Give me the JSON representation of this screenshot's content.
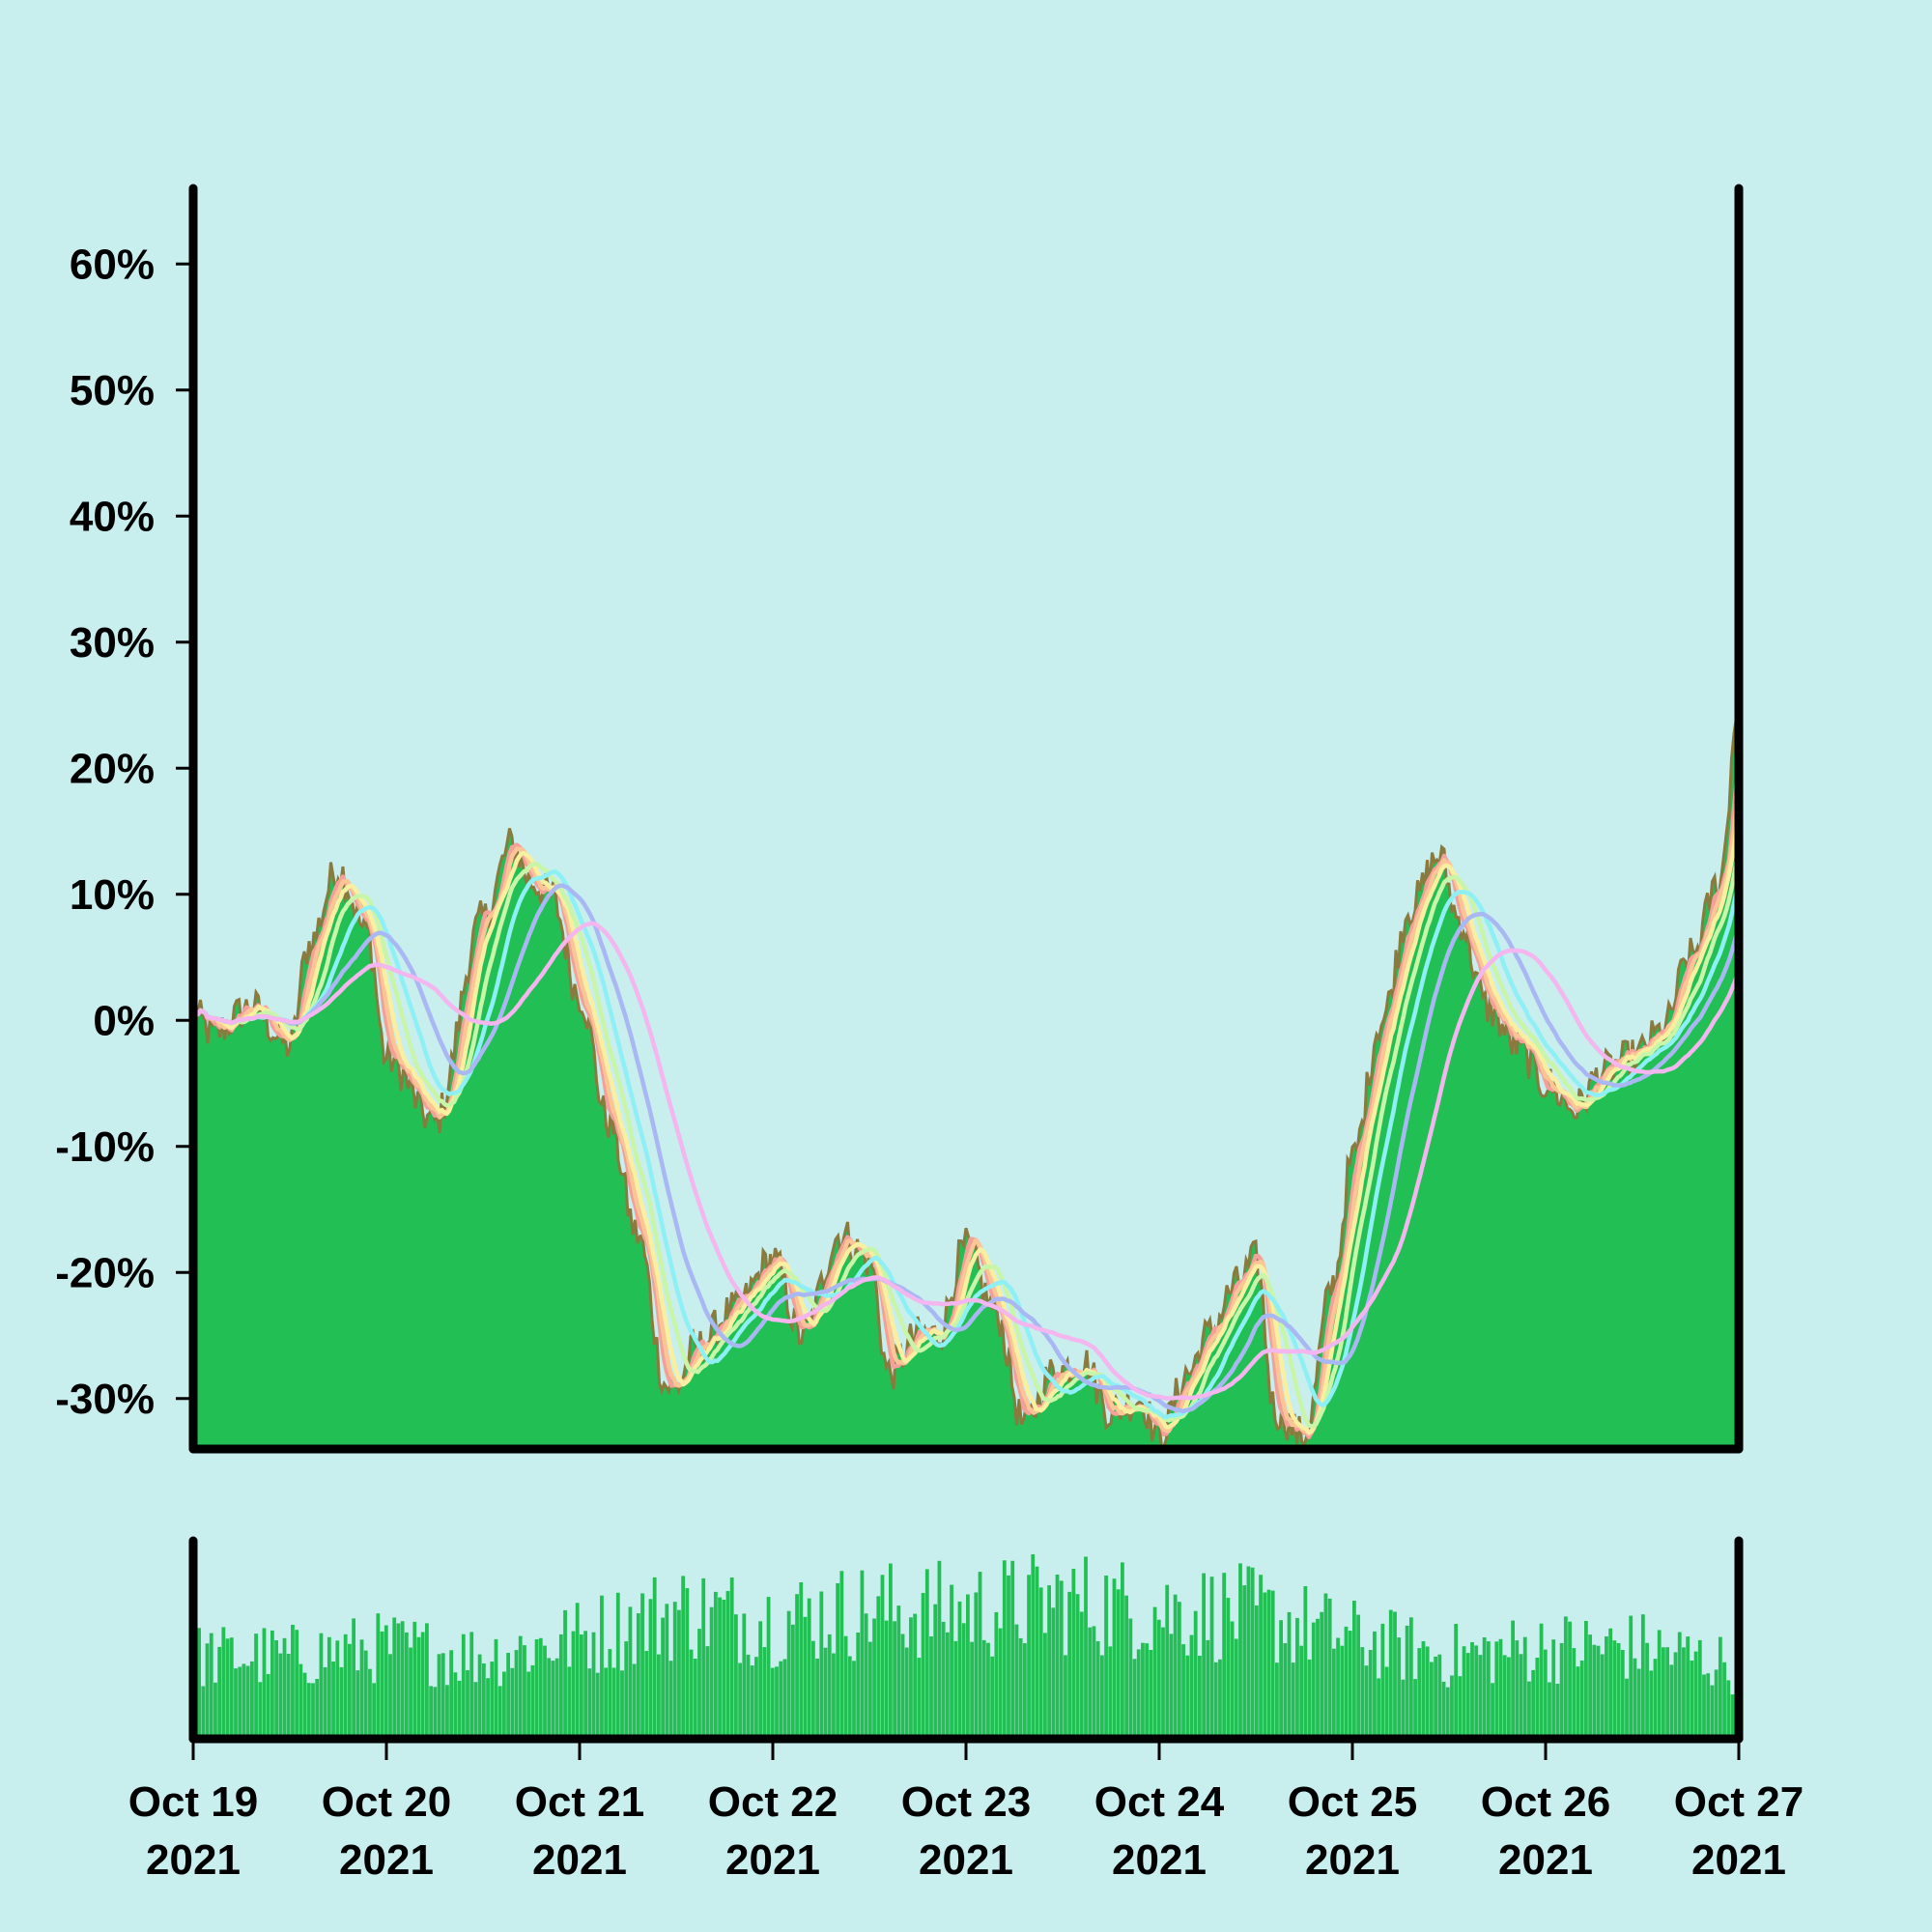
{
  "chart_data": {
    "type": "area",
    "title": "",
    "xlabel": "",
    "ylabel": "",
    "ylim": [
      -34,
      66
    ],
    "yticks": [
      "-30%",
      "-20%",
      "-10%",
      "0%",
      "10%",
      "20%",
      "30%",
      "40%",
      "50%",
      "60%"
    ],
    "yticks_values": [
      -30,
      -20,
      -10,
      0,
      10,
      20,
      30,
      40,
      50,
      60
    ],
    "xticks": [
      {
        "line1": "Oct 19",
        "line2": "2021",
        "day": 0
      },
      {
        "line1": "Oct 20",
        "line2": "2021",
        "day": 1
      },
      {
        "line1": "Oct 21",
        "line2": "2021",
        "day": 2
      },
      {
        "line1": "Oct 22",
        "line2": "2021",
        "day": 3
      },
      {
        "line1": "Oct 23",
        "line2": "2021",
        "day": 4
      },
      {
        "line1": "Oct 24",
        "line2": "2021",
        "day": 5
      },
      {
        "line1": "Oct 25",
        "line2": "2021",
        "day": 6
      },
      {
        "line1": "Oct 26",
        "line2": "2021",
        "day": 7
      },
      {
        "line1": "Oct 27",
        "line2": "2021",
        "day": 8
      }
    ],
    "grid": false,
    "colors": {
      "background": "#c8eeee",
      "area_fill": "#22bf55",
      "price_line": "#8a7a3e",
      "volume": "#22bf55",
      "axis": "#000000"
    },
    "price_series": {
      "x": [
        0,
        0.1,
        0.3,
        0.5,
        0.6,
        0.75,
        0.9,
        1.0,
        1.25,
        1.5,
        1.65,
        1.75,
        1.85,
        2.0,
        2.15,
        2.3,
        2.45,
        2.5,
        2.6,
        2.8,
        3.0,
        3.15,
        3.35,
        3.5,
        3.6,
        3.75,
        3.85,
        4.0,
        4.15,
        4.3,
        4.45,
        4.6,
        4.75,
        4.9,
        5.0,
        5.15,
        5.25,
        5.4,
        5.5,
        5.6,
        5.75,
        5.9,
        6.0,
        6.15,
        6.3,
        6.45,
        6.55,
        6.7,
        6.85,
        7.0,
        7.15,
        7.3,
        7.45,
        7.6,
        7.75,
        7.9,
        8.0
      ],
      "values": [
        0.5,
        -1,
        1,
        -2,
        6,
        12,
        7,
        -3,
        -8,
        8,
        14,
        11,
        10,
        2,
        -8,
        -17,
        -29,
        -29,
        -26,
        -23,
        -19,
        -25,
        -17,
        -19,
        -28,
        -25,
        -25,
        -18,
        -23,
        -32,
        -28,
        -27,
        -31,
        -30,
        -33,
        -28,
        -25,
        -21,
        -19,
        -31,
        -33,
        -21,
        -11,
        0,
        9,
        13,
        8,
        1,
        -2,
        -5,
        -7,
        -4,
        -3,
        -1,
        5,
        11,
        25
      ]
    },
    "series": [
      {
        "window": "MA-1",
        "color": "#f4a09a",
        "smooth": 0.06
      },
      {
        "window": "MA-2",
        "color": "#fbc596",
        "smooth": 0.09
      },
      {
        "window": "MA-3",
        "color": "#f8f0a0",
        "smooth": 0.13
      },
      {
        "window": "MA-4",
        "color": "#c8f5a8",
        "smooth": 0.2
      },
      {
        "window": "MA-5",
        "color": "#8ef0f4",
        "smooth": 0.3
      },
      {
        "window": "MA-6",
        "color": "#a9b8f3",
        "smooth": 0.45
      },
      {
        "window": "MA-7",
        "color": "#f4b6ee",
        "smooth": 0.7
      }
    ],
    "volume": {
      "bars": 380,
      "profile_x": [
        0,
        0.5,
        1,
        1.5,
        2,
        2.5,
        3,
        3.5,
        4,
        4.5,
        5,
        5.5,
        6,
        6.5,
        7,
        7.5,
        8
      ],
      "profile_level": [
        0.45,
        0.45,
        0.5,
        0.45,
        0.55,
        0.7,
        0.65,
        0.7,
        0.7,
        0.75,
        0.7,
        0.68,
        0.55,
        0.45,
        0.5,
        0.5,
        0.4
      ]
    }
  }
}
